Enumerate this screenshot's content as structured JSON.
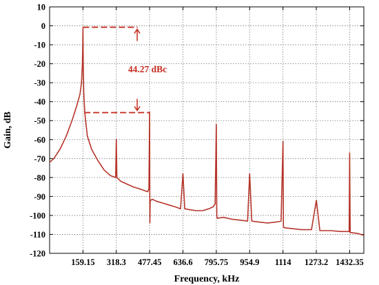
{
  "chart_data": {
    "type": "line",
    "xlabel": "Frequency, kHz",
    "ylabel": "Gain, dB",
    "xlim": [
      0,
      1500
    ],
    "ylim": [
      -120,
      10
    ],
    "x_ticks": [
      159.15,
      318.3,
      477.45,
      636.6,
      795.75,
      954.9,
      1114,
      1273.2,
      1432.35
    ],
    "x_tick_labels": [
      "159.15",
      "318.3",
      "477.45",
      "636.6",
      "795.75",
      "954.9",
      "1114",
      "1273.2",
      "1432.35"
    ],
    "y_ticks": [
      10,
      0,
      -10,
      -20,
      -30,
      -40,
      -50,
      -60,
      -70,
      -80,
      -90,
      -100,
      -110,
      -120
    ],
    "y_tick_labels": [
      "10",
      "0",
      "-10",
      "-20",
      "-30",
      "-40",
      "-50",
      "-60",
      "-70",
      "-80",
      "-90",
      "-100",
      "-110",
      "-120"
    ],
    "grid": true,
    "line_color": "#b5342a",
    "series": [
      {
        "x": [
          0,
          20,
          50,
          80,
          110,
          130,
          145,
          152,
          156,
          158,
          159.15,
          160.5,
          163,
          168,
          180,
          200,
          230,
          260,
          290,
          315,
          318.3,
          321,
          340,
          370,
          400,
          430,
          455,
          468,
          474,
          477.45,
          478.5,
          480,
          482,
          490,
          510,
          540,
          570,
          600,
          625,
          636.6,
          645,
          670,
          700,
          730,
          760,
          780,
          790,
          795.75,
          798,
          800,
          830,
          870,
          910,
          945,
          954.9,
          965,
          1000,
          1040,
          1080,
          1105,
          1114,
          1116,
          1120,
          1160,
          1200,
          1250,
          1273.2,
          1290,
          1340,
          1390,
          1430,
          1432.35,
          1435,
          1470,
          1500
        ],
        "y": [
          -72,
          -70,
          -65,
          -58,
          -49,
          -42,
          -36,
          -30,
          -22,
          -12,
          -1,
          -20,
          -36,
          -46,
          -58,
          -65,
          -71,
          -76,
          -79,
          -80,
          -60,
          -80,
          -82,
          -83.5,
          -85,
          -86,
          -87,
          -87.5,
          -86,
          -45.5,
          -104,
          -93,
          -92,
          -91.5,
          -92.5,
          -93.5,
          -94.5,
          -95.5,
          -96.5,
          -78,
          -96.5,
          -97,
          -97.5,
          -97.5,
          -96.5,
          -95.5,
          -94,
          -52,
          -100,
          -101.5,
          -101,
          -102,
          -102.5,
          -103,
          -78,
          -103,
          -103.5,
          -104,
          -103.5,
          -103,
          -61,
          -106,
          -106.5,
          -107,
          -107.5,
          -107.5,
          -92,
          -108,
          -108,
          -108.5,
          -108.5,
          -67,
          -109,
          -109.5,
          -110.5
        ]
      }
    ],
    "annotations": [
      {
        "text": "44.27 dBc",
        "color": "#c62d21"
      }
    ]
  }
}
